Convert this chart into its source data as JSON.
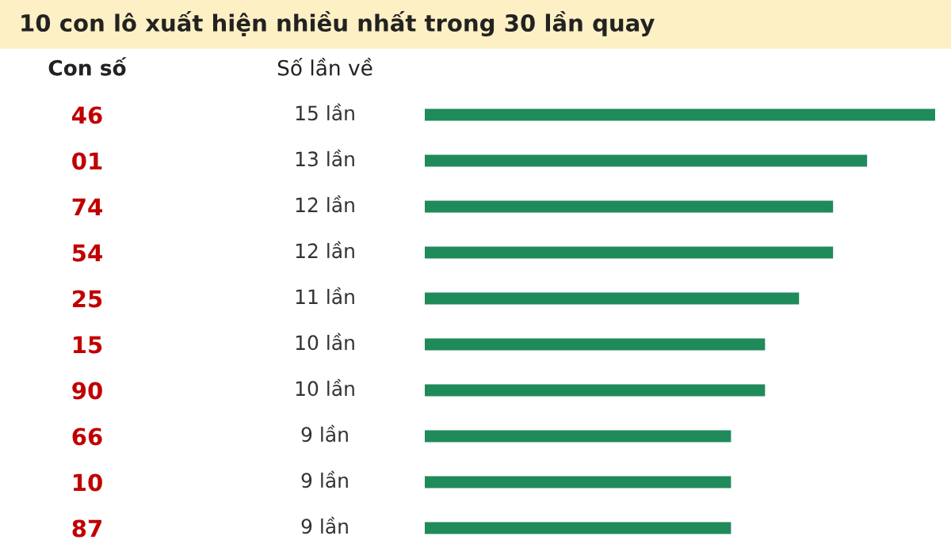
{
  "chart_data": {
    "type": "bar",
    "orientation": "horizontal",
    "title": "10 con lô xuất hiện nhiều nhất trong 30 lần quay",
    "xlabel": "Số lần về",
    "ylabel": "Con số",
    "categories": [
      "46",
      "01",
      "74",
      "54",
      "25",
      "15",
      "90",
      "66",
      "10",
      "87"
    ],
    "values": [
      15,
      13,
      12,
      12,
      11,
      10,
      10,
      9,
      9,
      9
    ],
    "value_labels": [
      "15 lần",
      "13 lần",
      "12 lần",
      "12 lần",
      "11 lần",
      "10 lần",
      "10 lần",
      "9 lần",
      "9 lần",
      "9 lần"
    ],
    "color": "#1f8a5a",
    "xlim": [
      0,
      15
    ],
    "tick_labels": "y",
    "grid": false,
    "legend": false
  }
}
